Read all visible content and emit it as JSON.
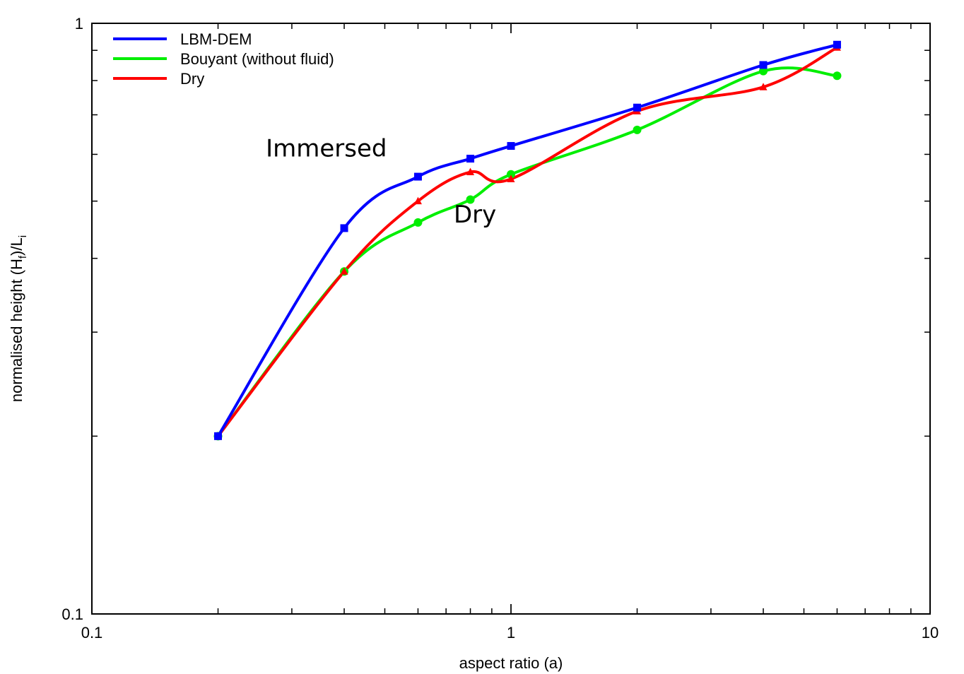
{
  "chart_data": {
    "type": "line",
    "xscale": "log",
    "yscale": "log",
    "xlim": [
      0.1,
      10
    ],
    "ylim": [
      0.1,
      1
    ],
    "xlabel": "aspect ratio (a)",
    "ylabel": {
      "main": "normalised height (H",
      "sub1": "f",
      "mid": ")/L",
      "sub2": "i"
    },
    "xticks": [
      {
        "value": 0.1,
        "label": "0.1"
      },
      {
        "value": 1,
        "label": "1"
      },
      {
        "value": 10,
        "label": "10"
      }
    ],
    "yticks": [
      {
        "value": 0.1,
        "label": "0.1"
      },
      {
        "value": 1,
        "label": "1"
      }
    ],
    "legend_position": "top-left",
    "grid": false,
    "series": [
      {
        "name": "LBM-DEM",
        "color": "#0000ff",
        "marker": "square",
        "x": [
          0.2,
          0.4,
          0.6,
          0.8,
          1,
          2,
          4,
          6
        ],
        "y": [
          0.2,
          0.45,
          0.55,
          0.59,
          0.62,
          0.72,
          0.85,
          0.92
        ]
      },
      {
        "name": "Bouyant (without fluid)",
        "color": "#00ee00",
        "marker": "circle",
        "x": [
          0.2,
          0.4,
          0.6,
          0.8,
          1,
          2,
          4,
          6
        ],
        "y": [
          0.2,
          0.38,
          0.46,
          0.503,
          0.555,
          0.66,
          0.83,
          0.815
        ]
      },
      {
        "name": "Dry",
        "color": "#ff0000",
        "marker": "triangle",
        "x": [
          0.2,
          0.4,
          0.6,
          0.8,
          1,
          2,
          4,
          6
        ],
        "y": [
          0.2,
          0.38,
          0.5,
          0.56,
          0.545,
          0.71,
          0.78,
          0.91
        ]
      }
    ],
    "annotations": [
      {
        "text": "Immersed",
        "x": 0.26,
        "y": 0.595
      },
      {
        "text": "Dry",
        "x": 0.73,
        "y": 0.46
      }
    ]
  }
}
